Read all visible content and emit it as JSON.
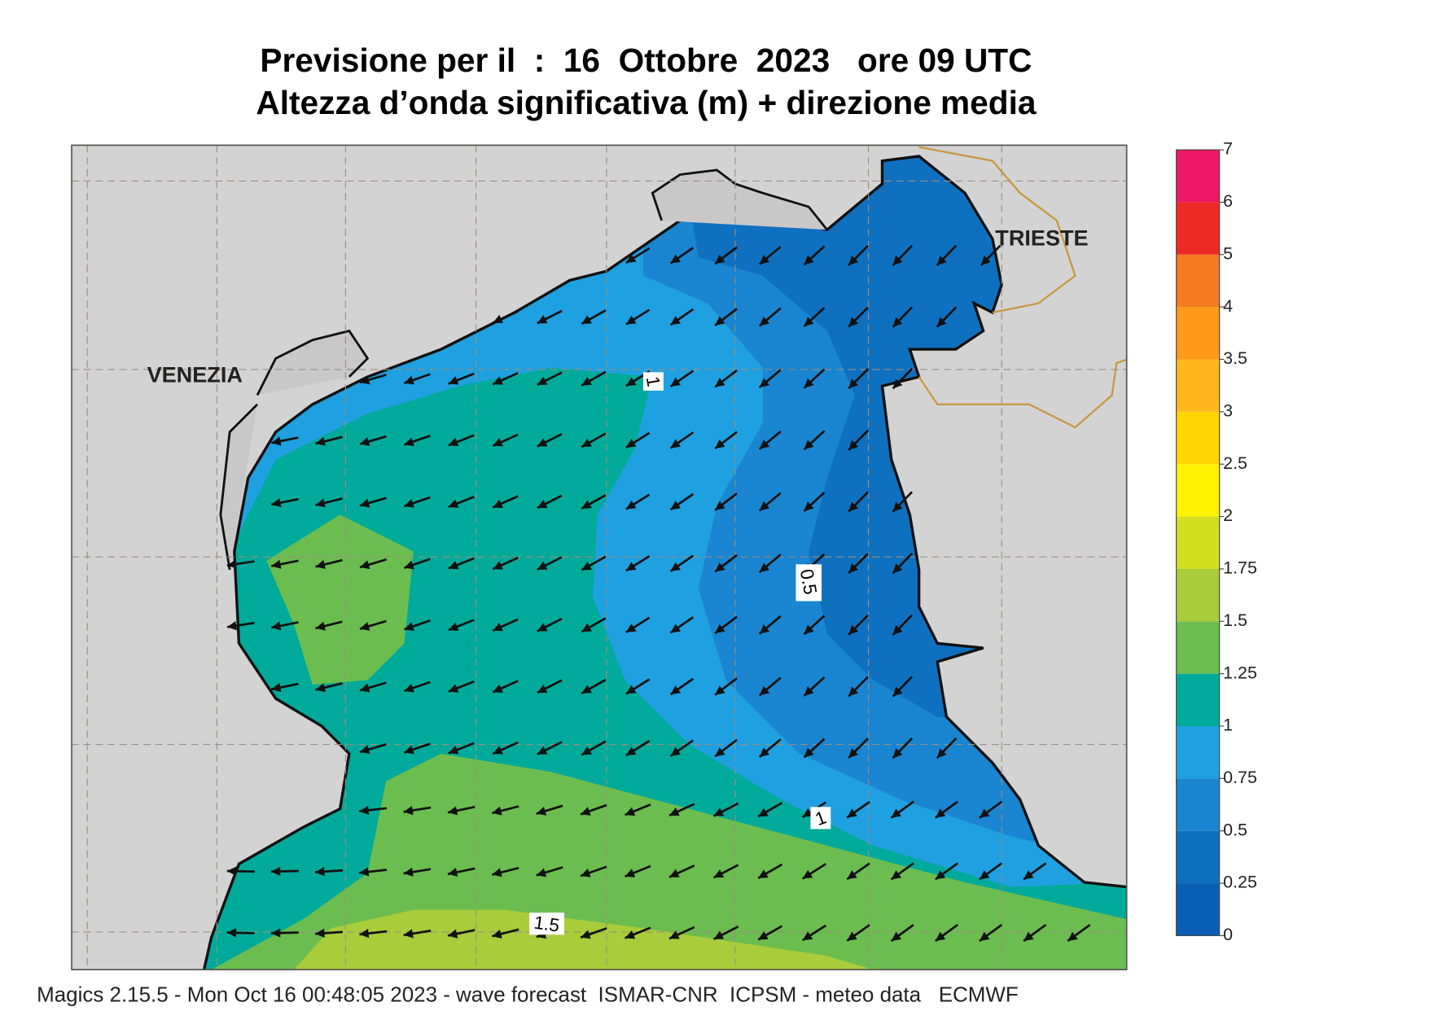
{
  "header": {
    "title": "Previsione per il  :  16  Ottobre  2023   ore 09 UTC",
    "subtitle": "Altezza d’onda significativa (m) + direzione media"
  },
  "map": {
    "places": [
      "VENEZIA",
      "TRIESTE"
    ],
    "contour_labels": [
      "1",
      "0.5",
      "1",
      "1.5"
    ]
  },
  "colorbar": {
    "levels": [
      0,
      0.25,
      0.5,
      0.75,
      1,
      1.25,
      1.5,
      1.75,
      2,
      2.5,
      3,
      3.5,
      4,
      5,
      6,
      7
    ],
    "colors": [
      "#0a5fb4",
      "#1070c0",
      "#1a85d0",
      "#1fa0e0",
      "#00aa9a",
      "#6cbd4f",
      "#a8cc3a",
      "#d4df22",
      "#fff200",
      "#ffd700",
      "#ffb71c",
      "#ff9a1a",
      "#f57a22",
      "#ee2a24",
      "#ee1866"
    ]
  },
  "footer": "Magics 2.15.5 - Mon Oct 16 00:48:05 2023 - wave forecast  ISMAR-CNR  ICPSM - meteo data   ECMWF"
}
